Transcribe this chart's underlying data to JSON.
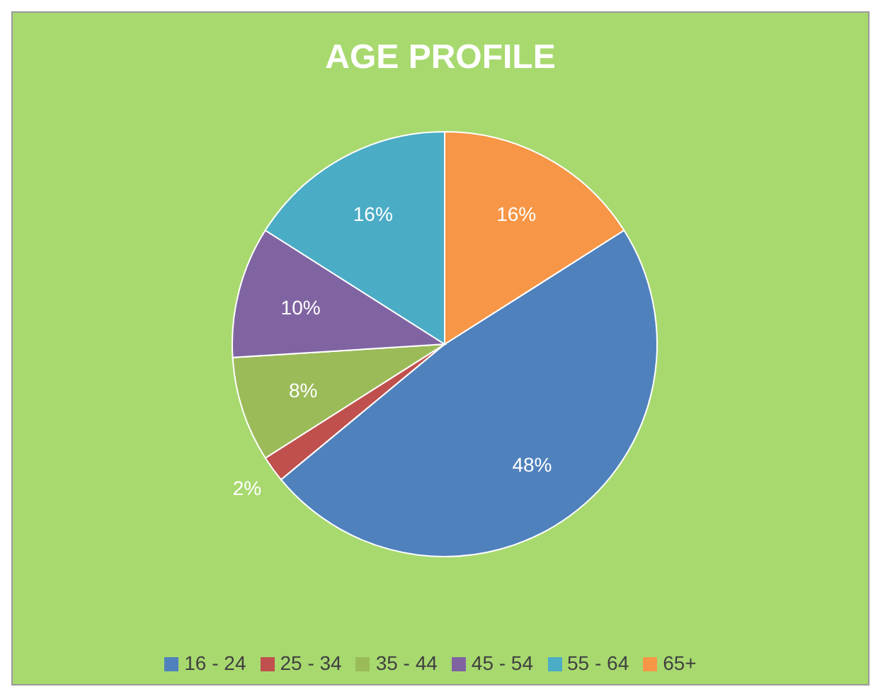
{
  "chart_data": {
    "type": "pie",
    "title": "AGE PROFILE",
    "categories": [
      "16 - 24",
      "25 - 34",
      "35 - 44",
      "45 - 54",
      "55 - 64",
      "65+"
    ],
    "values": [
      48,
      2,
      8,
      10,
      16,
      16
    ],
    "value_labels": [
      "48%",
      "2%",
      "8%",
      "10%",
      "16%",
      "16%"
    ],
    "colors": [
      "#4f81bd",
      "#c0504d",
      "#9bbb59",
      "#8064a2",
      "#4bacc6",
      "#f79646"
    ],
    "legend": "bottom"
  }
}
